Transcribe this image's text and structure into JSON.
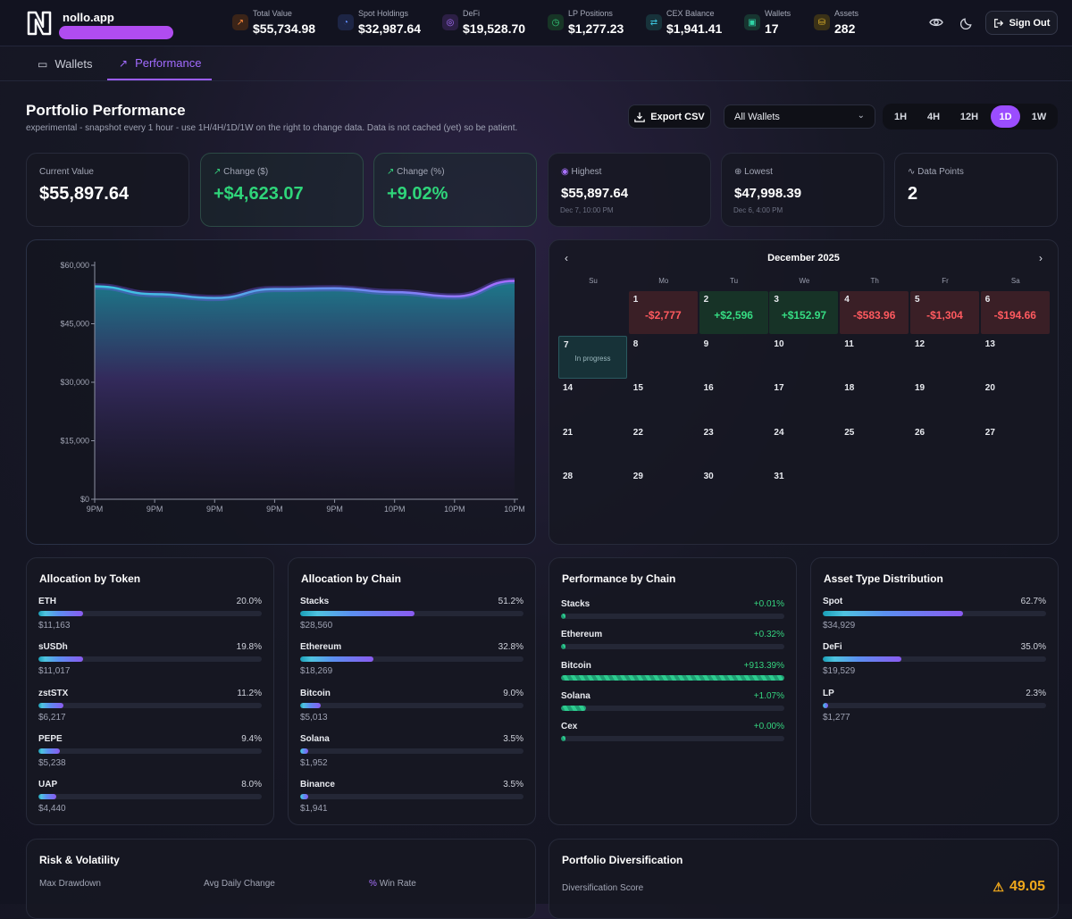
{
  "app": {
    "name": "nollo.app"
  },
  "header": {
    "stats": [
      {
        "label": "Total Value",
        "value": "$55,734.98"
      },
      {
        "label": "Spot Holdings",
        "value": "$32,987.64"
      },
      {
        "label": "DeFi",
        "value": "$19,528.70"
      },
      {
        "label": "LP Positions",
        "value": "$1,277.23"
      },
      {
        "label": "CEX Balance",
        "value": "$1,941.41"
      },
      {
        "label": "Wallets",
        "value": "17"
      },
      {
        "label": "Assets",
        "value": "282"
      }
    ],
    "sign_out": "Sign Out"
  },
  "tabs": [
    {
      "label": "Wallets"
    },
    {
      "label": "Performance"
    }
  ],
  "page": {
    "title": "Portfolio Performance",
    "subtitle": "experimental - snapshot every 1 hour - use 1H/4H/1D/1W on the right to change data. Data is not cached (yet) so be patient.",
    "export_label": "Export CSV",
    "wallet_select": "All Wallets",
    "ranges": [
      "1H",
      "4H",
      "12H",
      "1D",
      "1W"
    ],
    "active_range": "1D"
  },
  "metrics": [
    {
      "label": "Current Value",
      "value": "$55,897.64"
    },
    {
      "label": "Change ($)",
      "value": "+$4,623.07"
    },
    {
      "label": "Change (%)",
      "value": "+9.02%"
    },
    {
      "label": "Highest",
      "value": "$55,897.64",
      "sub": "Dec 7, 10:00 PM"
    },
    {
      "label": "Lowest",
      "value": "$47,998.39",
      "sub": "Dec 6, 4:00 PM"
    },
    {
      "label": "Data Points",
      "value": "2"
    }
  ],
  "chart_data": {
    "type": "area",
    "title": "",
    "xlabel": "",
    "ylabel": "",
    "categories": [
      "9PM",
      "9PM",
      "9PM",
      "9PM",
      "9PM",
      "10PM",
      "10PM",
      "10PM"
    ],
    "y_ticks": [
      "$0",
      "$15,000",
      "$30,000",
      "$45,000",
      "$60,000"
    ],
    "ylim": [
      0,
      60000
    ],
    "values": [
      54600,
      52600,
      51600,
      53900,
      54100,
      53100,
      52000,
      56000
    ]
  },
  "calendar": {
    "month": "December 2025",
    "weekdays": [
      "Su",
      "Mo",
      "Tu",
      "We",
      "Th",
      "Fr",
      "Sa"
    ],
    "pnl": {
      "1": "-$2,777",
      "2": "+$2,596",
      "3": "+$152.97",
      "4": "-$583.96",
      "5": "-$1,304",
      "6": "-$194.66"
    },
    "in_progress_day": 7,
    "in_progress_label": "In progress"
  },
  "allocation_token": {
    "title": "Allocation by Token",
    "items": [
      {
        "name": "ETH",
        "pct": "20.0%",
        "amount": "$11,163",
        "frac": 0.2
      },
      {
        "name": "sUSDh",
        "pct": "19.8%",
        "amount": "$11,017",
        "frac": 0.198
      },
      {
        "name": "zstSTX",
        "pct": "11.2%",
        "amount": "$6,217",
        "frac": 0.112
      },
      {
        "name": "PEPE",
        "pct": "9.4%",
        "amount": "$5,238",
        "frac": 0.094
      },
      {
        "name": "UAP",
        "pct": "8.0%",
        "amount": "$4,440",
        "frac": 0.08
      }
    ]
  },
  "allocation_chain": {
    "title": "Allocation by Chain",
    "items": [
      {
        "name": "Stacks",
        "pct": "51.2%",
        "amount": "$28,560",
        "frac": 0.512
      },
      {
        "name": "Ethereum",
        "pct": "32.8%",
        "amount": "$18,269",
        "frac": 0.328
      },
      {
        "name": "Bitcoin",
        "pct": "9.0%",
        "amount": "$5,013",
        "frac": 0.09
      },
      {
        "name": "Solana",
        "pct": "3.5%",
        "amount": "$1,952",
        "frac": 0.035
      },
      {
        "name": "Binance",
        "pct": "3.5%",
        "amount": "$1,941",
        "frac": 0.035
      }
    ]
  },
  "performance_chain": {
    "title": "Performance by Chain",
    "items": [
      {
        "name": "Stacks",
        "pct": "+0.01%",
        "frac": 0.0
      },
      {
        "name": "Ethereum",
        "pct": "+0.32%",
        "frac": 0.01
      },
      {
        "name": "Bitcoin",
        "pct": "+913.39%",
        "frac": 1.0
      },
      {
        "name": "Solana",
        "pct": "+1.07%",
        "frac": 0.11
      },
      {
        "name": "Cex",
        "pct": "+0.00%",
        "frac": 0.0
      }
    ]
  },
  "asset_type": {
    "title": "Asset Type Distribution",
    "items": [
      {
        "name": "Spot",
        "pct": "62.7%",
        "amount": "$34,929",
        "frac": 0.627
      },
      {
        "name": "DeFi",
        "pct": "35.0%",
        "amount": "$19,529",
        "frac": 0.35
      },
      {
        "name": "LP",
        "pct": "2.3%",
        "amount": "$1,277",
        "frac": 0.023
      }
    ]
  },
  "risk": {
    "title": "Risk & Volatility",
    "labels": [
      "Max Drawdown",
      "Avg Daily Change",
      "Win Rate"
    ],
    "colors": {
      "drawdown": "#ff5a5f",
      "daily": "#36dc83",
      "win": "#ff5a5f"
    }
  },
  "diversification": {
    "title": "Portfolio Diversification",
    "score_label": "Diversification Score",
    "score": "49.05"
  }
}
